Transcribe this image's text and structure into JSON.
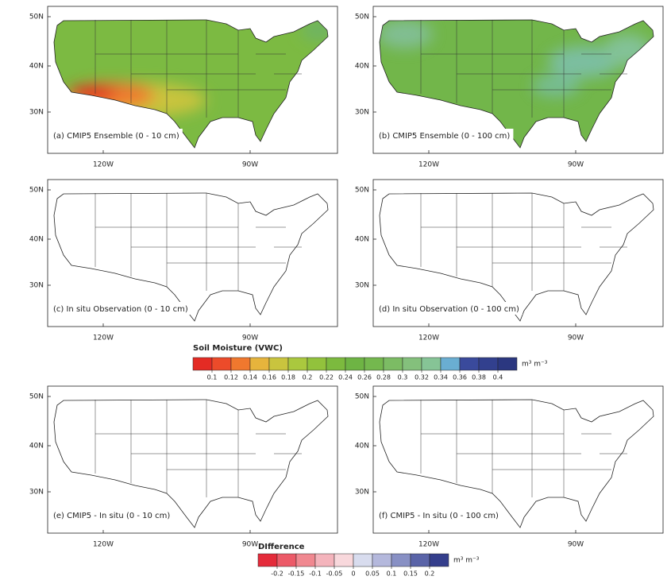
{
  "panels": [
    {
      "label": "(a) CMIP5 Ensemble (0 - 10 cm)"
    },
    {
      "label": "(b) CMIP5 Ensemble (0 - 100 cm)"
    },
    {
      "label": "(c) In situ Observation (0 - 10 cm)"
    },
    {
      "label": "(d) In situ Observation (0 - 100 cm)"
    },
    {
      "label": "(e) CMIP5 - In situ (0 - 10 cm)"
    },
    {
      "label": "(f) CMIP5 - In situ (0 - 100 cm)"
    }
  ],
  "lat_ticks": [
    "50N",
    "40N",
    "30N"
  ],
  "lon_ticks": [
    "120W",
    "90W"
  ],
  "colorbars": [
    {
      "title": "Soil Moisture (VWC)",
      "unit": "m³ m⁻³",
      "ticks": [
        0.1,
        0.12,
        0.14,
        0.16,
        0.18,
        0.2,
        0.22,
        0.24,
        0.26,
        0.28,
        0.3,
        0.32,
        0.34,
        0.36,
        0.38,
        0.4
      ],
      "colors": [
        "#e42b24",
        "#ec4b2a",
        "#f0782e",
        "#e6b43c",
        "#c9c43e",
        "#aac83e",
        "#92c23c",
        "#7cba3e",
        "#6eb444",
        "#74b84e",
        "#7cbc64",
        "#84c07c",
        "#86c496",
        "#6aaed2",
        "#3a4a9c",
        "#32408e",
        "#2b3780"
      ]
    },
    {
      "title": "DIfference",
      "unit": "m³ m⁻³",
      "ticks": [
        -0.2,
        -0.15,
        -0.1,
        -0.05,
        0,
        0.05,
        0.1,
        0.15,
        0.2
      ],
      "colors": [
        "#e42b3a",
        "#ec5a68",
        "#f08890",
        "#f4b4bc",
        "#f8d8dc",
        "#d8dcee",
        "#b4b8dc",
        "#8890c4",
        "#5a64a8",
        "#343e8c"
      ]
    }
  ]
}
